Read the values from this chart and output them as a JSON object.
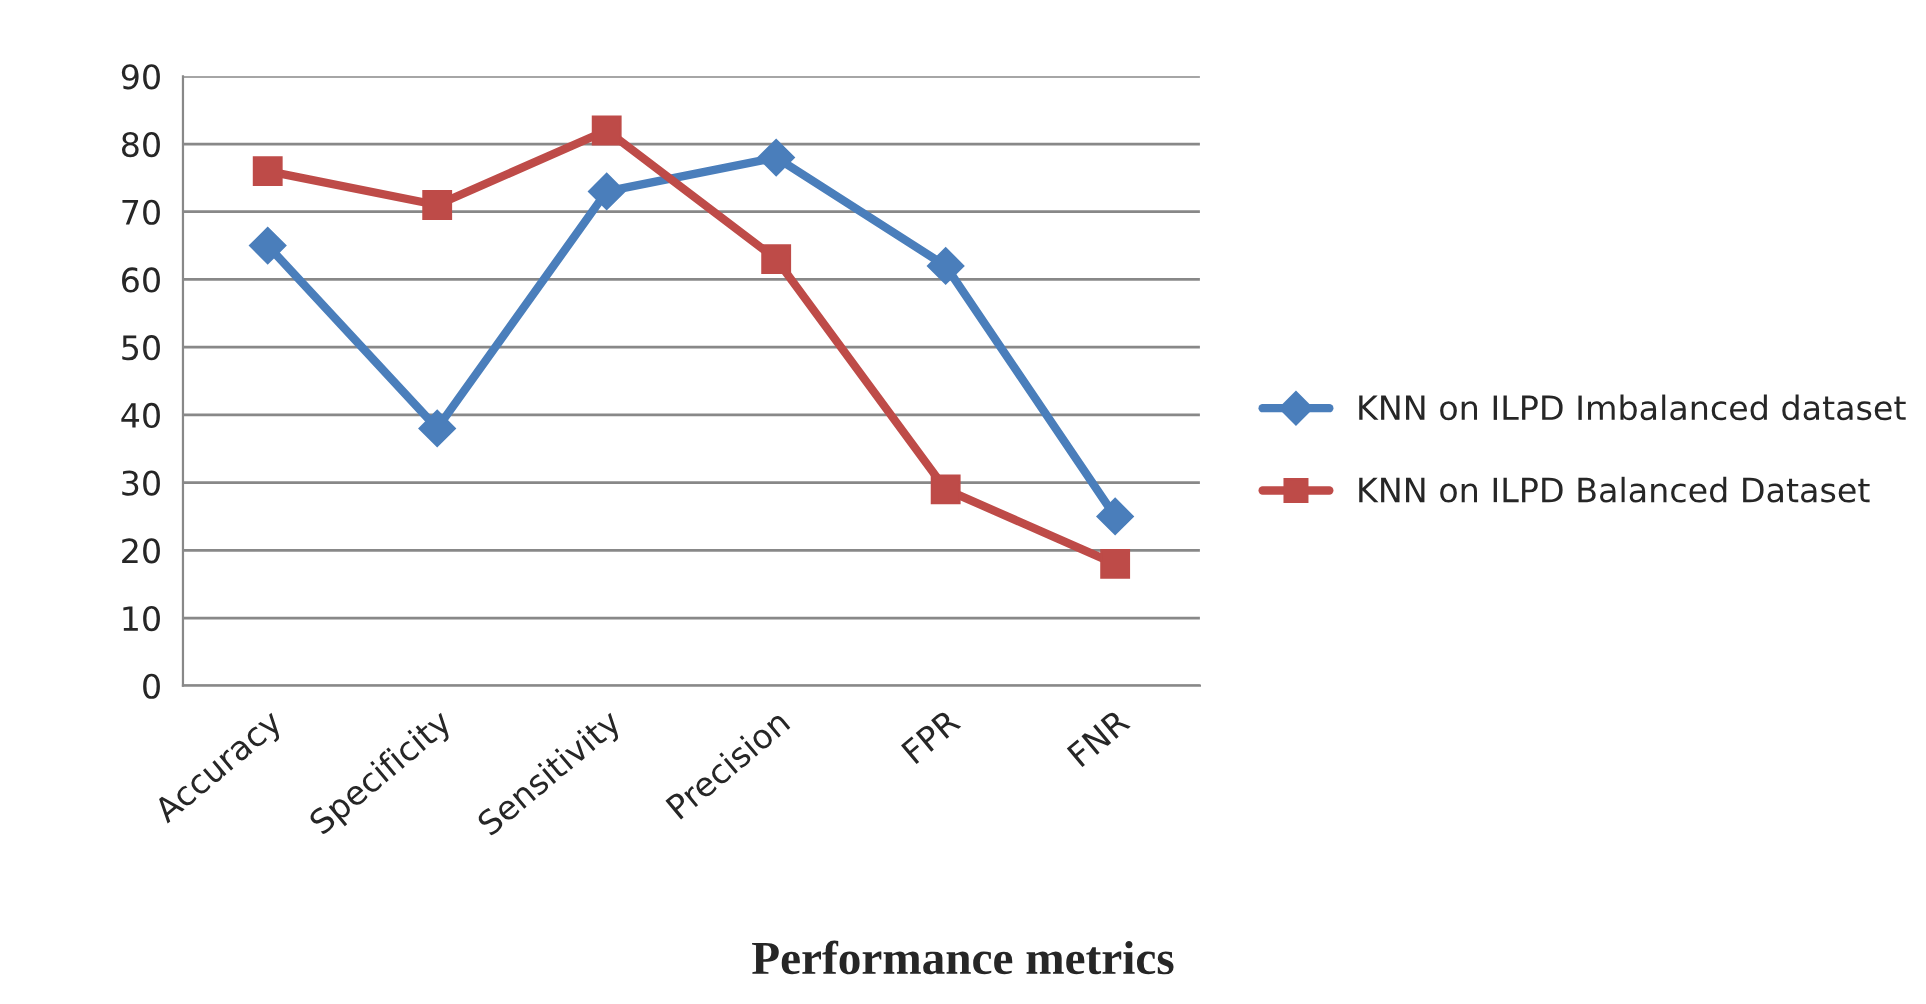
{
  "chart_data": {
    "type": "line",
    "xlabel": "Performance metrics",
    "categories": [
      "Accuracy",
      "Specificity",
      "Sensitivity",
      "Precision",
      "FPR",
      "FNR"
    ],
    "series": [
      {
        "name": "KNN on ILPD Imbalanced dataset",
        "color": "#4a7ebb",
        "marker": "diamond",
        "values": [
          65,
          38,
          73,
          78,
          62,
          25
        ]
      },
      {
        "name": "KNN on ILPD Balanced Dataset",
        "color": "#be4b48",
        "marker": "square",
        "values": [
          76,
          71,
          82,
          63,
          29,
          18
        ]
      }
    ],
    "ylim": [
      0,
      90
    ],
    "yticks": [
      0,
      10,
      20,
      30,
      40,
      50,
      60,
      70,
      80,
      90
    ],
    "grid": "y",
    "legend": "right",
    "line_style": "solid"
  }
}
